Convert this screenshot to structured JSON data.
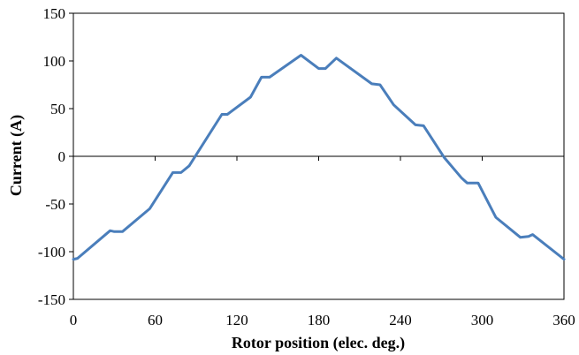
{
  "chart_data": {
    "type": "line",
    "title": "",
    "xlabel": "Rotor position (elec. deg.)",
    "ylabel": "Current (A)",
    "xlim": [
      0,
      360
    ],
    "ylim": [
      -150,
      150
    ],
    "x_ticks": [
      0,
      60,
      120,
      180,
      240,
      300,
      360
    ],
    "y_ticks": [
      150,
      100,
      50,
      0,
      -50,
      -100,
      -150
    ],
    "grid": false,
    "legend": "none",
    "series": [
      {
        "color": "#4a7ebb",
        "points": [
          [
            0,
            -108
          ],
          [
            3,
            -107
          ],
          [
            27,
            -78
          ],
          [
            30,
            -79
          ],
          [
            36,
            -79
          ],
          [
            56,
            -55
          ],
          [
            73,
            -17
          ],
          [
            79,
            -17
          ],
          [
            85,
            -10
          ],
          [
            109,
            44
          ],
          [
            113,
            44
          ],
          [
            130,
            62
          ],
          [
            138,
            83
          ],
          [
            144,
            83
          ],
          [
            167,
            106
          ],
          [
            180,
            92
          ],
          [
            185,
            92
          ],
          [
            193,
            103
          ],
          [
            219,
            76
          ],
          [
            225,
            75
          ],
          [
            235,
            54
          ],
          [
            251,
            33
          ],
          [
            257,
            32
          ],
          [
            272,
            -1
          ],
          [
            285,
            -23
          ],
          [
            289,
            -28
          ],
          [
            297,
            -28
          ],
          [
            310,
            -64
          ],
          [
            328,
            -85
          ],
          [
            334,
            -84
          ],
          [
            337,
            -82
          ],
          [
            360,
            -108
          ]
        ]
      }
    ]
  }
}
